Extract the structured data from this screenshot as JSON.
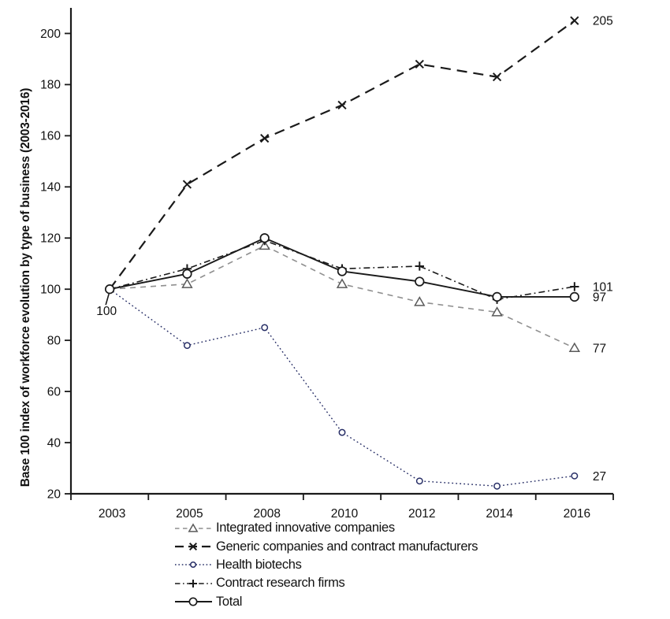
{
  "chart_data": {
    "type": "line",
    "title": "",
    "xlabel": "",
    "ylabel": "Base 100 index of workforce evolution by type of business (2003-2016)",
    "categories": [
      "2003",
      "2005",
      "2008",
      "2010",
      "2012",
      "2014",
      "2016"
    ],
    "ylim": [
      20,
      210
    ],
    "yticks": [
      20,
      40,
      60,
      80,
      100,
      120,
      140,
      160,
      180,
      200
    ],
    "grid": false,
    "legend_position": "bottom-left",
    "axis_color": "#1a1a1a",
    "series": [
      {
        "name": "Integrated innovative companies",
        "values": [
          100,
          102,
          117,
          102,
          95,
          91,
          77
        ],
        "color": "#8f8f8f",
        "marker_color": "#5a5a5a",
        "style": "dashed",
        "marker": "triangle",
        "end_label": "77"
      },
      {
        "name": "Generic companies and contract manufacturers",
        "values": [
          100,
          141,
          159,
          172,
          188,
          183,
          205
        ],
        "color": "#1a1a1a",
        "style": "dashed-long",
        "marker": "x",
        "end_label": "205"
      },
      {
        "name": "Health biotechs",
        "values": [
          100,
          78,
          85,
          44,
          25,
          23,
          27
        ],
        "color": "#272e66",
        "style": "dotted",
        "marker": "circle-small",
        "end_label": "27"
      },
      {
        "name": "Contract research firms",
        "values": [
          100,
          108,
          119,
          108,
          109,
          96,
          101
        ],
        "color": "#1a1a1a",
        "style": "dash-dot",
        "marker": "plus",
        "end_label": "101"
      },
      {
        "name": "Total",
        "values": [
          100,
          106,
          120,
          107,
          103,
          97,
          97
        ],
        "color": "#1a1a1a",
        "style": "solid",
        "marker": "circle",
        "end_label": "97",
        "start_label": "100"
      }
    ]
  }
}
